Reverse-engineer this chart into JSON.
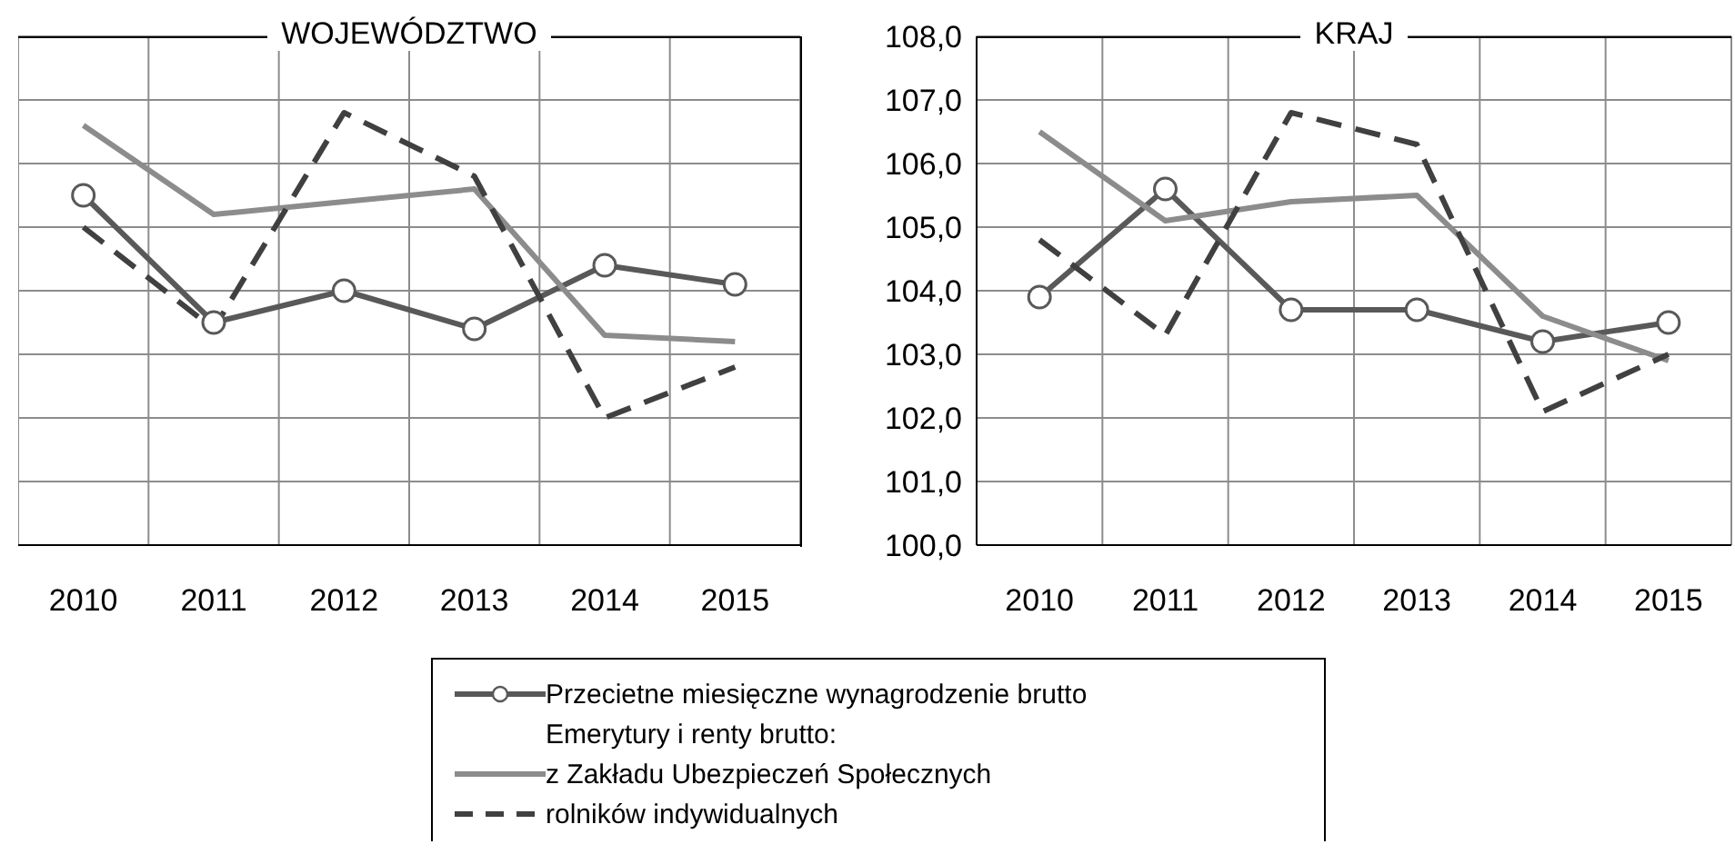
{
  "chart_data": [
    {
      "type": "line",
      "title": "WOJEWÓDZTWO",
      "categories": [
        "2010",
        "2011",
        "2012",
        "2013",
        "2014",
        "2015"
      ],
      "ylim": [
        100,
        108
      ],
      "yticks": [
        100,
        101,
        102,
        103,
        104,
        105,
        106,
        107,
        108
      ],
      "grid": true,
      "tick_labels": "x",
      "legend": "bottom",
      "annotations": [
        "Emerytury i renty brutto:"
      ],
      "series": [
        {
          "name": "Przecietne miesięczne wynagrodzenie brutto",
          "color": "#595959",
          "marker": "circle",
          "line_style": "solid",
          "values": [
            105.5,
            103.5,
            104.0,
            103.4,
            104.4,
            104.1
          ]
        },
        {
          "name": "z Zakładu Ubezpieczeń Społecznych",
          "color": "#8c8c8c",
          "marker": "none",
          "line_style": "solid",
          "values": [
            106.6,
            105.2,
            105.4,
            105.6,
            103.3,
            103.2
          ]
        },
        {
          "name": "rolników indywidualnych",
          "color": "#404040",
          "marker": "none",
          "line_style": "dashed",
          "values": [
            105.0,
            103.4,
            106.8,
            105.8,
            102.0,
            102.8
          ]
        }
      ]
    },
    {
      "type": "line",
      "title": "KRAJ",
      "categories": [
        "2010",
        "2011",
        "2012",
        "2013",
        "2014",
        "2015"
      ],
      "ylim": [
        100,
        108
      ],
      "yticks": [
        {
          "value": 100,
          "label": "100,0"
        },
        {
          "value": 101,
          "label": "101,0"
        },
        {
          "value": 102,
          "label": "102,0"
        },
        {
          "value": 103,
          "label": "103,0"
        },
        {
          "value": 104,
          "label": "104,0"
        },
        {
          "value": 105,
          "label": "105,0"
        },
        {
          "value": 106,
          "label": "106,0"
        },
        {
          "value": 107,
          "label": "107,0"
        },
        {
          "value": 108,
          "label": "108,0"
        }
      ],
      "grid": true,
      "series": [
        {
          "color": "#595959",
          "marker": "circle",
          "line_style": "solid",
          "values": [
            103.9,
            105.6,
            103.7,
            103.7,
            103.2,
            103.5
          ]
        },
        {
          "color": "#8c8c8c",
          "marker": "none",
          "line_style": "solid",
          "values": [
            106.5,
            105.1,
            105.4,
            105.5,
            103.6,
            102.9
          ]
        },
        {
          "color": "#404040",
          "marker": "none",
          "line_style": "dashed",
          "values": [
            104.8,
            103.3,
            106.8,
            106.3,
            102.1,
            103.0
          ]
        }
      ]
    }
  ]
}
